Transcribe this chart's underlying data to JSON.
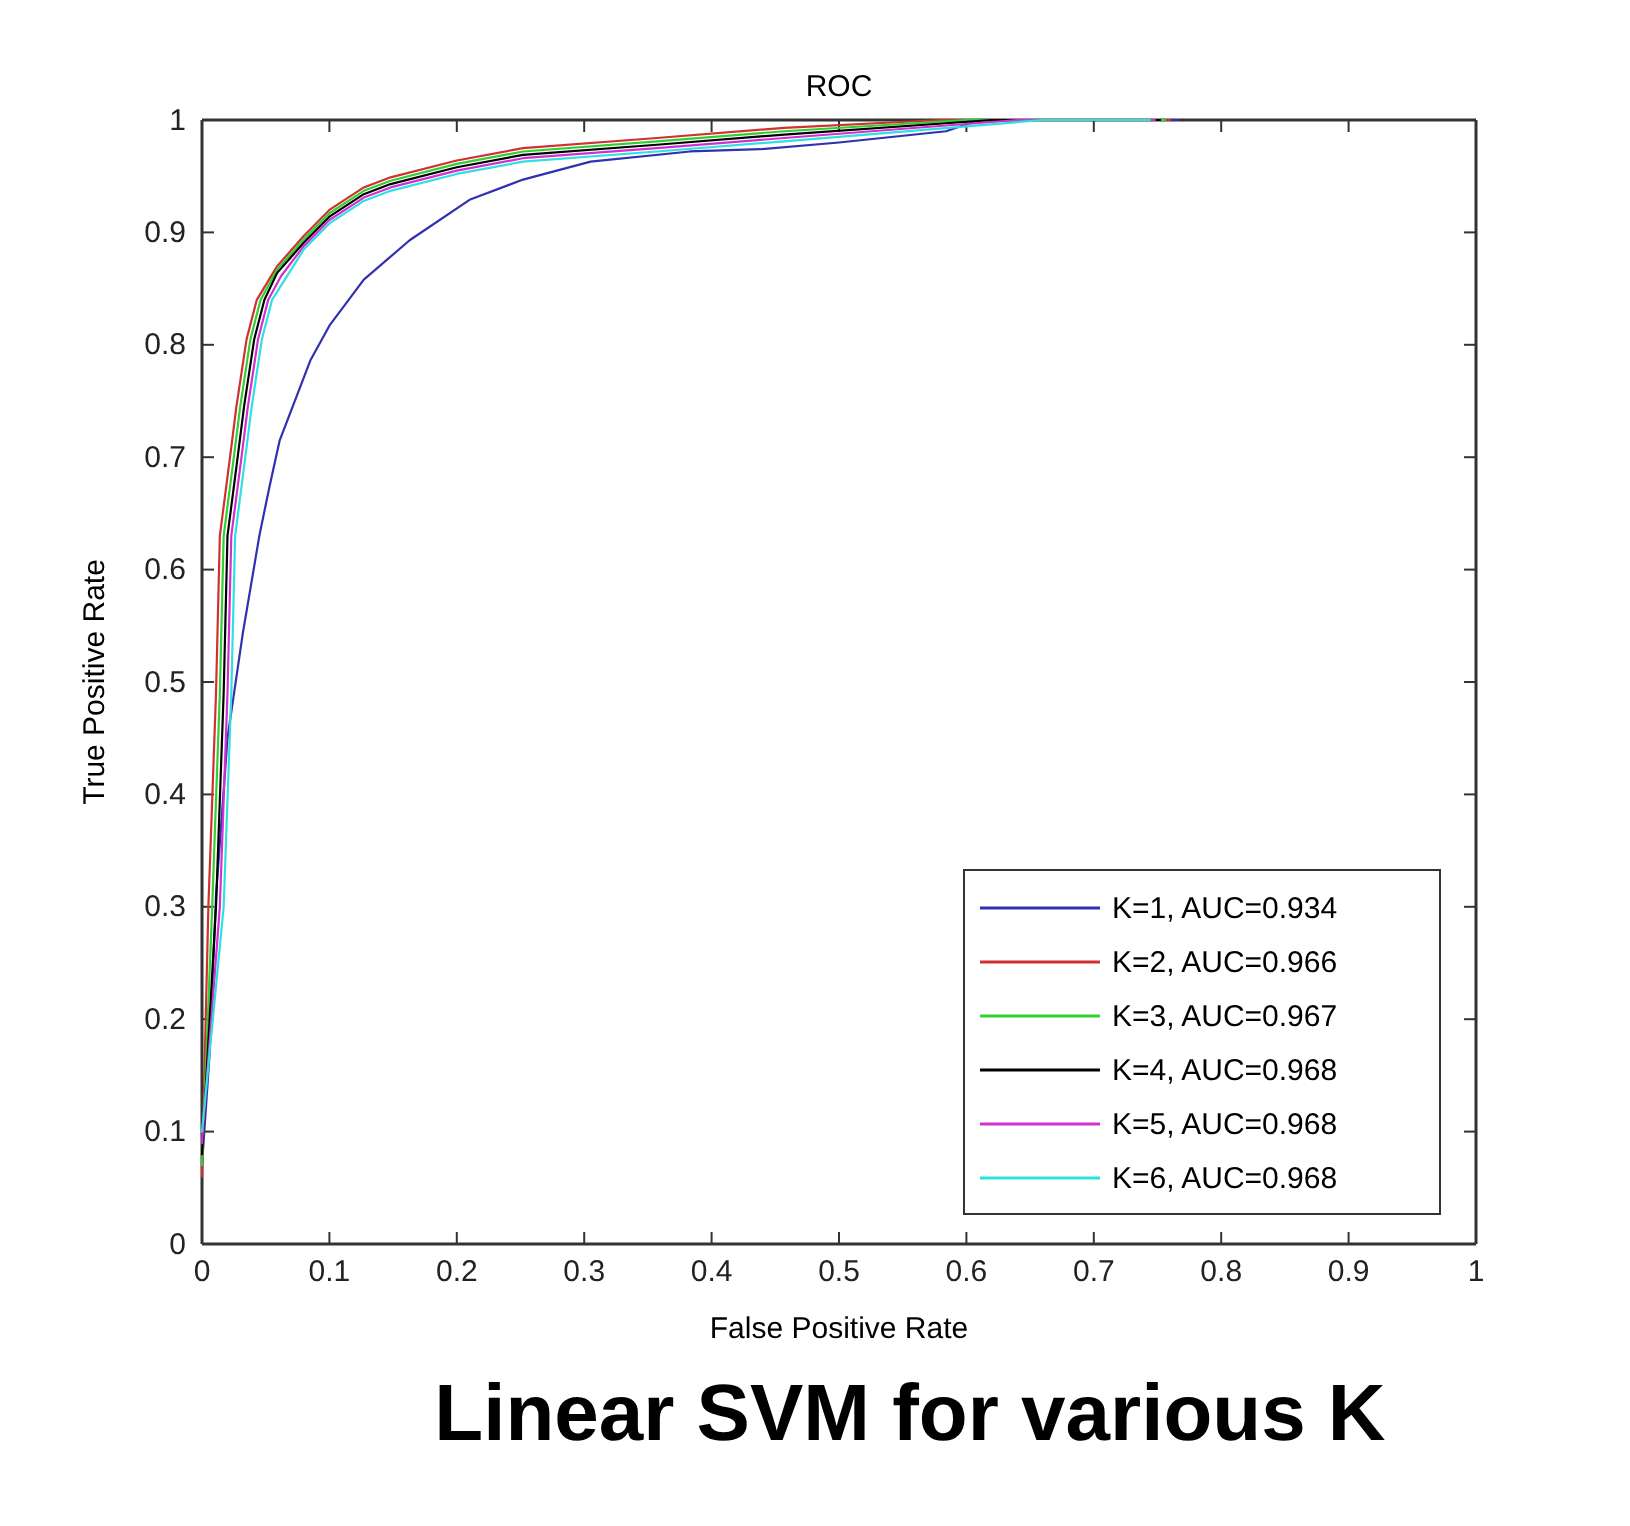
{
  "chart_data": {
    "type": "line",
    "title": "ROC",
    "xlabel": "False Positive Rate",
    "ylabel": "True Positive Rate",
    "annotations": [
      "Linear SVM for various K"
    ],
    "xlim": [
      0,
      1
    ],
    "ylim": [
      0,
      1
    ],
    "xticks": [
      0,
      0.1,
      0.2,
      0.3,
      0.4,
      0.5,
      0.6,
      0.7,
      0.8,
      0.9,
      1
    ],
    "yticks": [
      0,
      0.1,
      0.2,
      0.3,
      0.4,
      0.5,
      0.6,
      0.7,
      0.8,
      0.9,
      1
    ],
    "grid": false,
    "legend": "bottom right",
    "marker": "none",
    "line_style": "solid",
    "series": [
      {
        "name": "K=1, AUC=0.934",
        "color": "#3030b0",
        "x": [
          0,
          0.006,
          0.011,
          0.02,
          0.032,
          0.045,
          0.053,
          0.061,
          0.085,
          0.1,
          0.127,
          0.163,
          0.21,
          0.252,
          0.305,
          0.383,
          0.438,
          0.5,
          0.584,
          0.61,
          0.766
        ],
        "values": [
          0.07,
          0.17,
          0.31,
          0.45,
          0.543,
          0.63,
          0.674,
          0.715,
          0.786,
          0.817,
          0.858,
          0.893,
          0.929,
          0.947,
          0.963,
          0.972,
          0.974,
          0.98,
          0.99,
          1,
          1
        ]
      },
      {
        "name": "K=2, AUC=0.966",
        "color": "#d03030",
        "x": [
          0,
          0.005,
          0.011,
          0.014,
          0.022,
          0.027,
          0.035,
          0.043,
          0.059,
          0.08,
          0.1,
          0.127,
          0.148,
          0.2,
          0.252,
          0.357,
          0.457,
          0.58,
          0.76
        ],
        "values": [
          0.06,
          0.3,
          0.49,
          0.63,
          0.7,
          0.745,
          0.805,
          0.84,
          0.87,
          0.897,
          0.92,
          0.94,
          0.949,
          0.964,
          0.975,
          0.984,
          0.993,
          1,
          1
        ]
      },
      {
        "name": "K=3, AUC=0.967",
        "color": "#30d030",
        "x": [
          0,
          0.008,
          0.014,
          0.017,
          0.025,
          0.03,
          0.038,
          0.046,
          0.059,
          0.08,
          0.1,
          0.127,
          0.148,
          0.2,
          0.252,
          0.357,
          0.457,
          0.6,
          0.756
        ],
        "values": [
          0.07,
          0.3,
          0.49,
          0.63,
          0.7,
          0.745,
          0.805,
          0.84,
          0.867,
          0.894,
          0.917,
          0.937,
          0.946,
          0.961,
          0.972,
          0.981,
          0.99,
          1,
          1
        ]
      },
      {
        "name": "K=4, AUC=0.968",
        "color": "#000000",
        "x": [
          0,
          0.011,
          0.017,
          0.02,
          0.028,
          0.033,
          0.041,
          0.049,
          0.059,
          0.08,
          0.1,
          0.127,
          0.148,
          0.2,
          0.252,
          0.357,
          0.457,
          0.62,
          0.752
        ],
        "values": [
          0.08,
          0.3,
          0.49,
          0.63,
          0.7,
          0.745,
          0.805,
          0.84,
          0.864,
          0.891,
          0.914,
          0.934,
          0.943,
          0.958,
          0.969,
          0.978,
          0.987,
          1,
          1
        ]
      },
      {
        "name": "K=5, AUC=0.968",
        "color": "#d030d0",
        "x": [
          0,
          0.014,
          0.02,
          0.023,
          0.031,
          0.036,
          0.044,
          0.052,
          0.062,
          0.08,
          0.1,
          0.127,
          0.148,
          0.2,
          0.252,
          0.357,
          0.457,
          0.64,
          0.748
        ],
        "values": [
          0.09,
          0.3,
          0.49,
          0.63,
          0.7,
          0.745,
          0.805,
          0.84,
          0.861,
          0.888,
          0.911,
          0.931,
          0.94,
          0.955,
          0.966,
          0.975,
          0.984,
          1,
          1
        ]
      },
      {
        "name": "K=6, AUC=0.968",
        "color": "#30e0e0",
        "x": [
          0,
          0.017,
          0.023,
          0.026,
          0.034,
          0.039,
          0.047,
          0.055,
          0.065,
          0.08,
          0.1,
          0.127,
          0.148,
          0.2,
          0.252,
          0.357,
          0.457,
          0.66,
          0.744
        ],
        "values": [
          0.1,
          0.3,
          0.49,
          0.63,
          0.7,
          0.745,
          0.805,
          0.84,
          0.858,
          0.885,
          0.908,
          0.928,
          0.937,
          0.952,
          0.963,
          0.972,
          0.981,
          1,
          1
        ]
      }
    ]
  }
}
